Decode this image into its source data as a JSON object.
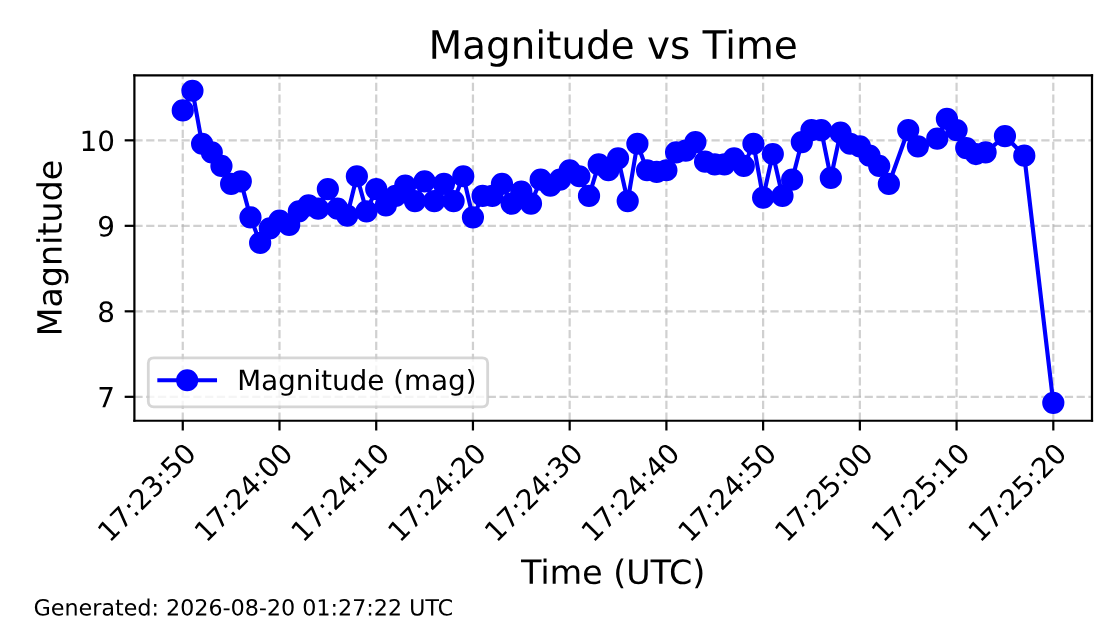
{
  "chart_data": {
    "type": "line",
    "title": "Magnitude vs Time",
    "xlabel": "Time (UTC)",
    "ylabel": "Magnitude",
    "annotations": [
      "Generated: 2026-08-20 01:27:22 UTC"
    ],
    "x": [
      "2026-08-20T17:23:50",
      "2026-08-20T17:23:51",
      "2026-08-20T17:23:52",
      "2026-08-20T17:23:53",
      "2026-08-20T17:23:54",
      "2026-08-20T17:23:55",
      "2026-08-20T17:23:56",
      "2026-08-20T17:23:57",
      "2026-08-20T17:23:58",
      "2026-08-20T17:23:59",
      "2026-08-20T17:24:00",
      "2026-08-20T17:24:01",
      "2026-08-20T17:24:02",
      "2026-08-20T17:24:03",
      "2026-08-20T17:24:04",
      "2026-08-20T17:24:05",
      "2026-08-20T17:24:06",
      "2026-08-20T17:24:07",
      "2026-08-20T17:24:08",
      "2026-08-20T17:24:09",
      "2026-08-20T17:24:10",
      "2026-08-20T17:24:11",
      "2026-08-20T17:24:12",
      "2026-08-20T17:24:13",
      "2026-08-20T17:24:14",
      "2026-08-20T17:24:15",
      "2026-08-20T17:24:16",
      "2026-08-20T17:24:17",
      "2026-08-20T17:24:18",
      "2026-08-20T17:24:19",
      "2026-08-20T17:24:20",
      "2026-08-20T17:24:21",
      "2026-08-20T17:24:22",
      "2026-08-20T17:24:23",
      "2026-08-20T17:24:24",
      "2026-08-20T17:24:25",
      "2026-08-20T17:24:26",
      "2026-08-20T17:24:27",
      "2026-08-20T17:24:28",
      "2026-08-20T17:24:29",
      "2026-08-20T17:24:30",
      "2026-08-20T17:24:31",
      "2026-08-20T17:24:32",
      "2026-08-20T17:24:33",
      "2026-08-20T17:24:34",
      "2026-08-20T17:24:35",
      "2026-08-20T17:24:36",
      "2026-08-20T17:24:37",
      "2026-08-20T17:24:38",
      "2026-08-20T17:24:39",
      "2026-08-20T17:24:40",
      "2026-08-20T17:24:41",
      "2026-08-20T17:24:42",
      "2026-08-20T17:24:43",
      "2026-08-20T17:24:44",
      "2026-08-20T17:24:45",
      "2026-08-20T17:24:46",
      "2026-08-20T17:24:47",
      "2026-08-20T17:24:48",
      "2026-08-20T17:24:49",
      "2026-08-20T17:24:50",
      "2026-08-20T17:24:51",
      "2026-08-20T17:24:52",
      "2026-08-20T17:24:53",
      "2026-08-20T17:24:54",
      "2026-08-20T17:24:55",
      "2026-08-20T17:24:56",
      "2026-08-20T17:24:57",
      "2026-08-20T17:24:58",
      "2026-08-20T17:24:59",
      "2026-08-20T17:25:00",
      "2026-08-20T17:25:01",
      "2026-08-20T17:25:02",
      "2026-08-20T17:25:03",
      "2026-08-20T17:25:05",
      "2026-08-20T17:25:06",
      "2026-08-20T17:25:08",
      "2026-08-20T17:25:09",
      "2026-08-20T17:25:10",
      "2026-08-20T17:25:11",
      "2026-08-20T17:25:12",
      "2026-08-20T17:25:13",
      "2026-08-20T17:25:15",
      "2026-08-20T17:25:17",
      "2026-08-20T17:25:20"
    ],
    "series": [
      {
        "name": "Magnitude (mag)",
        "color": "#0000ff",
        "values": [
          10.35,
          10.58,
          9.96,
          9.86,
          9.7,
          9.49,
          9.52,
          9.1,
          8.8,
          8.97,
          9.06,
          9.01,
          9.17,
          9.24,
          9.2,
          9.43,
          9.2,
          9.12,
          9.58,
          9.17,
          9.43,
          9.24,
          9.35,
          9.47,
          9.29,
          9.52,
          9.29,
          9.49,
          9.29,
          9.58,
          9.1,
          9.35,
          9.35,
          9.49,
          9.26,
          9.4,
          9.26,
          9.54,
          9.47,
          9.54,
          9.65,
          9.58,
          9.35,
          9.72,
          9.65,
          9.79,
          9.29,
          9.96,
          9.65,
          9.63,
          9.65,
          9.86,
          9.88,
          9.98,
          9.75,
          9.72,
          9.72,
          9.79,
          9.7,
          9.96,
          9.33,
          9.84,
          9.35,
          9.54,
          9.98,
          10.12,
          10.12,
          9.56,
          10.09,
          9.96,
          9.93,
          9.82,
          9.7,
          9.49,
          10.12,
          9.93,
          10.02,
          10.25,
          10.12,
          9.91,
          9.84,
          9.86,
          10.05,
          9.82,
          6.93
        ]
      }
    ],
    "xlim": [
      "2026-08-20T17:23:45",
      "2026-08-20T17:25:24"
    ],
    "xticks": [
      {
        "value": "2026-08-20T17:23:50",
        "label": "17:23:50"
      },
      {
        "value": "2026-08-20T17:24:00",
        "label": "17:24:00"
      },
      {
        "value": "2026-08-20T17:24:10",
        "label": "17:24:10"
      },
      {
        "value": "2026-08-20T17:24:20",
        "label": "17:24:20"
      },
      {
        "value": "2026-08-20T17:24:30",
        "label": "17:24:30"
      },
      {
        "value": "2026-08-20T17:24:40",
        "label": "17:24:40"
      },
      {
        "value": "2026-08-20T17:24:50",
        "label": "17:24:50"
      },
      {
        "value": "2026-08-20T17:25:00",
        "label": "17:25:00"
      },
      {
        "value": "2026-08-20T17:25:10",
        "label": "17:25:10"
      },
      {
        "value": "2026-08-20T17:25:20",
        "label": "17:25:20"
      }
    ],
    "ylim": [
      6.72,
      10.76
    ],
    "yticks": [
      7,
      8,
      9,
      10
    ],
    "grid": true,
    "legend": "lower left",
    "marker": "circle",
    "line_style": "solid"
  }
}
